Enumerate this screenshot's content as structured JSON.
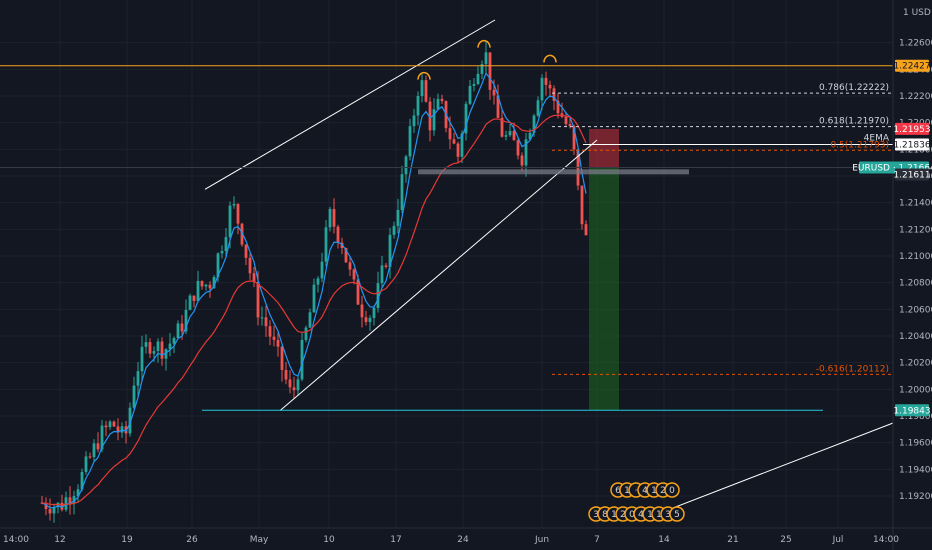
{
  "chart_data": {
    "type": "candlestick",
    "symbol": "EURUSD",
    "currency": "USD",
    "axis_currency_label": "1 USD",
    "ylim": [
      1.1902,
      1.2286
    ],
    "y_ticks": [
      "1.22600",
      "1.22400",
      "1.22200",
      "1.22000",
      "1.21800",
      "1.21600",
      "1.21400",
      "1.21200",
      "1.21000",
      "1.20800",
      "1.20600",
      "1.20400",
      "1.20200",
      "1.20000",
      "1.19800",
      "1.19600",
      "1.19400",
      "1.19200"
    ],
    "x_ticks": [
      "14:00",
      "12",
      "19",
      "26",
      "May",
      "10",
      "17",
      "24",
      "Jun",
      "7",
      "14",
      "21",
      "25",
      "Jul",
      "14:00"
    ],
    "price_labels": [
      {
        "id": "resistance",
        "text": "1.22427",
        "value": 1.22427,
        "color": "#f7a21b",
        "text_color": "#131722"
      },
      {
        "id": "stop",
        "text": "1.21953",
        "value": 1.21953,
        "color": "#f23645",
        "text_color": "#ffffff"
      },
      {
        "id": "ema",
        "text": "1.21836",
        "value": 1.21836,
        "color": "#ffffff",
        "text_color": "#131722"
      },
      {
        "id": "last",
        "text": "EURUSD · 1.21664",
        "value": 1.21664,
        "color": "#26a69a",
        "text_color": "#ffffff"
      },
      {
        "id": "level",
        "text": "1.21611",
        "value": 1.21611,
        "color": "#2a2e39",
        "text_color": "#ffffff"
      },
      {
        "id": "target",
        "text": "1.19843",
        "value": 1.19843,
        "color": "#26a69a",
        "text_color": "#ffffff"
      }
    ],
    "fib_levels": [
      {
        "label": "0.786(1.22222)",
        "value": 1.22222,
        "color": "#d1d4dc"
      },
      {
        "label": "0.618(1.21970)",
        "value": 1.2197,
        "color": "#d1d4dc"
      },
      {
        "label": "0.5(1.21793)",
        "value": 1.21793,
        "color": "#e65100"
      },
      {
        "label": "-0.616(1.20112)",
        "value": 1.20112,
        "color": "#e65100"
      }
    ],
    "ema_label": "4EMA",
    "annotations": [
      "resistance 1.22427",
      "channel lines",
      "support 1.19843",
      "short position box"
    ],
    "news_badge_rows": [
      {
        "chars": [
          "6",
          "1",
          "·",
          "4",
          "1",
          "2",
          "0"
        ]
      },
      {
        "chars": [
          "3",
          "8",
          "1",
          "2",
          "0",
          "4",
          "1",
          "1",
          "3",
          "5"
        ]
      }
    ],
    "colors": {
      "background": "#131722",
      "up": "#26a69a",
      "down": "#ef5350",
      "ema_fast": "#2196f3",
      "ema_slow": "#e53935",
      "resistance": "#f7a21b",
      "support": "#26c6da",
      "risk": "#f23645",
      "reward": "#1b5e20"
    }
  }
}
